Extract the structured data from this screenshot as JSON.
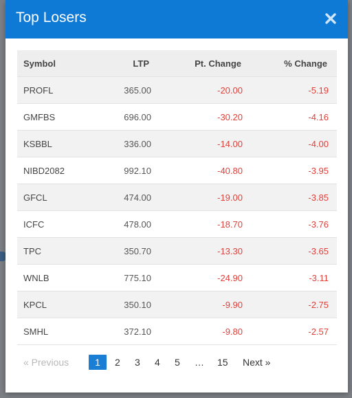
{
  "modal": {
    "title": "Top Losers",
    "close_icon": "close-icon"
  },
  "colors": {
    "header_bg": "#0f7ad6",
    "negative": "#e0403a",
    "active_page": "#1a7fd4"
  },
  "table": {
    "headers": {
      "symbol": "Symbol",
      "ltp": "LTP",
      "pt_change": "Pt. Change",
      "pct_change": "% Change"
    },
    "rows": [
      {
        "symbol": "PROFL",
        "ltp": "365.00",
        "pt_change": "-20.00",
        "pct_change": "-5.19"
      },
      {
        "symbol": "GMFBS",
        "ltp": "696.00",
        "pt_change": "-30.20",
        "pct_change": "-4.16"
      },
      {
        "symbol": "KSBBL",
        "ltp": "336.00",
        "pt_change": "-14.00",
        "pct_change": "-4.00"
      },
      {
        "symbol": "NIBD2082",
        "ltp": "992.10",
        "pt_change": "-40.80",
        "pct_change": "-3.95"
      },
      {
        "symbol": "GFCL",
        "ltp": "474.00",
        "pt_change": "-19.00",
        "pct_change": "-3.85"
      },
      {
        "symbol": "ICFC",
        "ltp": "478.00",
        "pt_change": "-18.70",
        "pct_change": "-3.76"
      },
      {
        "symbol": "TPC",
        "ltp": "350.70",
        "pt_change": "-13.30",
        "pct_change": "-3.65"
      },
      {
        "symbol": "WNLB",
        "ltp": "775.10",
        "pt_change": "-24.90",
        "pct_change": "-3.11"
      },
      {
        "symbol": "KPCL",
        "ltp": "350.10",
        "pt_change": "-9.90",
        "pct_change": "-2.75"
      },
      {
        "symbol": "SMHL",
        "ltp": "372.10",
        "pt_change": "-9.80",
        "pct_change": "-2.57"
      }
    ]
  },
  "pagination": {
    "prev": "« Previous",
    "pages": [
      "1",
      "2",
      "3",
      "4",
      "5",
      "…",
      "15"
    ],
    "active": "1",
    "next": "Next »"
  }
}
